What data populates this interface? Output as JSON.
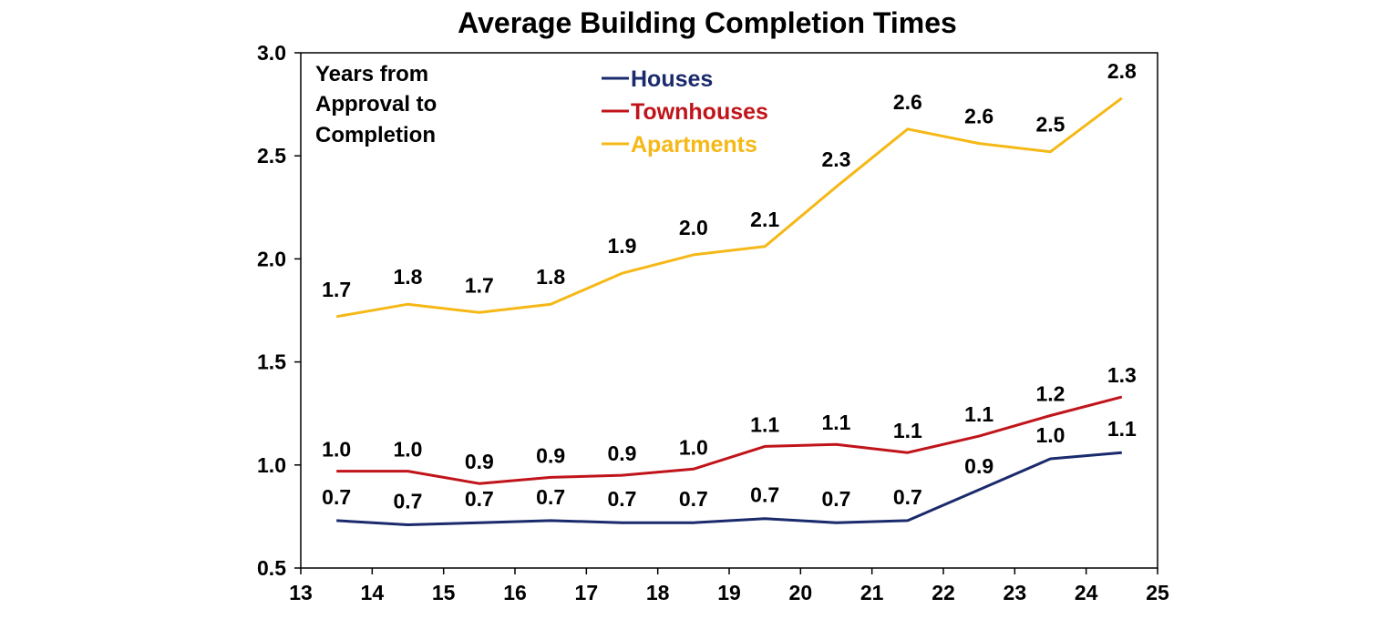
{
  "chart_data": {
    "type": "line",
    "title": "Average Building Completion Times",
    "annotation": [
      "Years from",
      "Approval to",
      "Completion"
    ],
    "x_tick_labels": [
      "13",
      "14",
      "15",
      "16",
      "17",
      "18",
      "19",
      "20",
      "21",
      "22",
      "23",
      "24",
      "25"
    ],
    "xlim": [
      13,
      25
    ],
    "y_tick_labels": [
      "0.5",
      "1.0",
      "1.5",
      "2.0",
      "2.5",
      "3.0"
    ],
    "ylim": [
      0.5,
      3.0
    ],
    "grid": false,
    "legend_position": "top-center",
    "x": [
      13.5,
      14.5,
      15.5,
      16.5,
      17.5,
      18.5,
      19.5,
      20.5,
      21.5,
      22.5,
      23.5,
      24.5
    ],
    "series": [
      {
        "name": "Houses",
        "color": "#1a2a6c",
        "values": [
          0.73,
          0.71,
          0.72,
          0.73,
          0.72,
          0.72,
          0.74,
          0.72,
          0.73,
          0.88,
          1.03,
          1.06
        ],
        "labels": [
          "0.7",
          "0.7",
          "0.7",
          "0.7",
          "0.7",
          "0.7",
          "0.7",
          "0.7",
          "0.7",
          "0.9",
          "1.0",
          "1.1"
        ]
      },
      {
        "name": "Townhouses",
        "color": "#c0141a",
        "values": [
          0.97,
          0.97,
          0.91,
          0.94,
          0.95,
          0.98,
          1.09,
          1.1,
          1.06,
          1.14,
          1.24,
          1.33
        ],
        "labels": [
          "1.0",
          "1.0",
          "0.9",
          "0.9",
          "0.9",
          "1.0",
          "1.1",
          "1.1",
          "1.1",
          "1.1",
          "1.2",
          "1.3"
        ]
      },
      {
        "name": "Apartments",
        "color": "#f5b816",
        "values": [
          1.72,
          1.78,
          1.74,
          1.78,
          1.93,
          2.02,
          2.06,
          2.35,
          2.63,
          2.56,
          2.52,
          2.78
        ],
        "labels": [
          "1.7",
          "1.8",
          "1.7",
          "1.8",
          "1.9",
          "2.0",
          "2.1",
          "2.3",
          "2.6",
          "2.6",
          "2.5",
          "2.8"
        ]
      }
    ]
  }
}
